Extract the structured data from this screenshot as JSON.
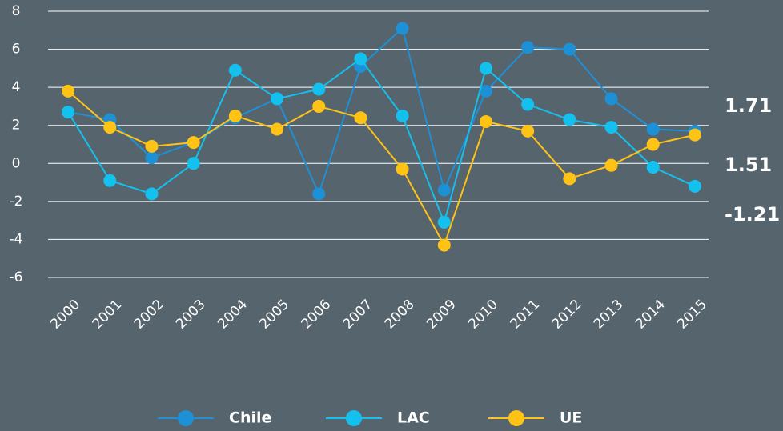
{
  "chart_data": {
    "type": "line",
    "categories": [
      "2000",
      "2001",
      "2002",
      "2003",
      "2004",
      "2005",
      "2006",
      "2007",
      "2008",
      "2009",
      "2010",
      "2011",
      "2012",
      "2013",
      "2014",
      "2015"
    ],
    "series": [
      {
        "name": "Chile",
        "color": "#1e90d6",
        "values": [
          2.7,
          2.3,
          0.3,
          1.1,
          2.4,
          3.4,
          -1.6,
          5.1,
          7.1,
          -1.4,
          3.8,
          6.1,
          6.0,
          3.4,
          1.8,
          1.7
        ]
      },
      {
        "name": "LAC",
        "color": "#14c0ee",
        "values": [
          2.7,
          -0.9,
          -1.6,
          0.0,
          4.9,
          3.4,
          3.9,
          5.5,
          2.5,
          -3.1,
          5.0,
          3.1,
          2.3,
          1.9,
          -0.2,
          -1.2
        ]
      },
      {
        "name": "UE",
        "color": "#ffc316",
        "values": [
          3.8,
          1.9,
          0.9,
          1.1,
          2.5,
          1.8,
          3.0,
          2.4,
          -0.3,
          -4.3,
          2.2,
          1.7,
          -0.8,
          -0.1,
          1.0,
          1.5
        ]
      }
    ],
    "annotations": [
      "1.71",
      "1.51",
      "-1.21"
    ],
    "ylim": [
      -6,
      8
    ],
    "yticks": [
      -6,
      -4,
      -2,
      0,
      2,
      4,
      6,
      8
    ],
    "grid": true,
    "legend": "bottom"
  }
}
